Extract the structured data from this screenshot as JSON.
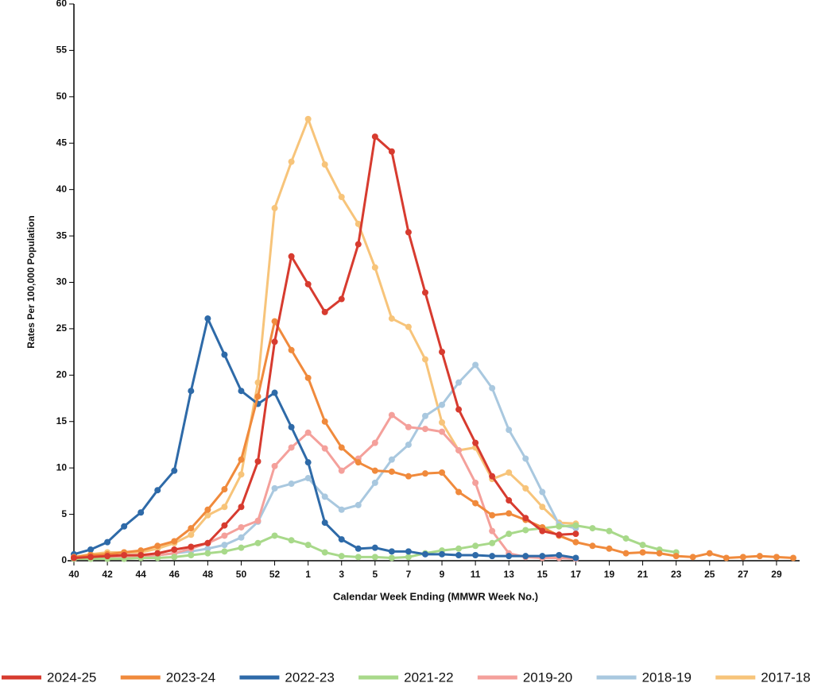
{
  "chart_data": {
    "type": "line",
    "xlabel": "Calendar Week Ending (MMWR Week No.)",
    "ylabel": "Rates Per 100,000 Population",
    "categories": [
      "40",
      null,
      "42",
      null,
      "44",
      null,
      "46",
      null,
      "48",
      null,
      "50",
      null,
      "52",
      null,
      "1",
      null,
      "3",
      null,
      "5",
      null,
      "7",
      null,
      "9",
      null,
      "11",
      null,
      "13",
      null,
      "15",
      null,
      "17",
      null,
      "19",
      null,
      "21",
      null,
      "23",
      null,
      "25",
      null,
      "27",
      null,
      "29",
      null
    ],
    "ylim": [
      0,
      60
    ],
    "yticks": [
      0,
      5,
      10,
      15,
      20,
      25,
      30,
      35,
      40,
      45,
      50,
      55,
      60
    ],
    "legend": "bottom",
    "series": [
      {
        "name": "2024-25",
        "color": "#d73b2f",
        "values": [
          0.3,
          0.4,
          0.5,
          0.6,
          0.6,
          0.8,
          1.2,
          1.5,
          1.9,
          3.8,
          5.8,
          10.7,
          23.6,
          32.8,
          29.8,
          26.8,
          28.2,
          34.1,
          45.7,
          44.1,
          35.4,
          28.9,
          22.5,
          16.3,
          12.7,
          9.1,
          6.5,
          4.6,
          3.2,
          2.8,
          2.9,
          null,
          null,
          null,
          null,
          null,
          null,
          null,
          null,
          null,
          null,
          null,
          null,
          null
        ]
      },
      {
        "name": "2023-24",
        "color": "#f08a3c",
        "values": [
          0.4,
          0.6,
          0.7,
          0.9,
          1.1,
          1.6,
          2.1,
          3.5,
          5.5,
          7.7,
          10.9,
          17.7,
          25.8,
          22.7,
          19.7,
          15.0,
          12.2,
          10.6,
          9.7,
          9.6,
          9.1,
          9.4,
          9.5,
          7.4,
          6.2,
          4.9,
          5.1,
          4.4,
          3.6,
          2.7,
          2.0,
          1.6,
          1.3,
          0.8,
          0.9,
          0.8,
          0.5,
          0.4,
          0.8,
          0.3,
          0.4,
          0.5,
          0.4,
          0.3
        ]
      },
      {
        "name": "2022-23",
        "color": "#2e6aa8",
        "values": [
          0.7,
          1.2,
          2.0,
          3.7,
          5.2,
          7.6,
          9.7,
          18.3,
          26.1,
          22.2,
          18.3,
          16.9,
          18.1,
          14.4,
          10.6,
          4.1,
          2.3,
          1.3,
          1.4,
          1.0,
          1.0,
          0.7,
          0.7,
          0.6,
          0.6,
          0.5,
          0.5,
          0.5,
          0.5,
          0.6,
          0.3,
          null,
          null,
          null,
          null,
          null,
          null,
          null,
          null,
          null,
          null,
          null,
          null,
          null
        ]
      },
      {
        "name": "2021-22",
        "color": "#a8d98a",
        "values": [
          0.2,
          0.2,
          0.2,
          0.2,
          0.3,
          0.3,
          0.4,
          0.6,
          0.8,
          1.0,
          1.4,
          1.9,
          2.7,
          2.2,
          1.7,
          0.9,
          0.5,
          0.4,
          0.4,
          0.3,
          0.4,
          0.8,
          1.1,
          1.3,
          1.6,
          1.9,
          2.9,
          3.3,
          3.5,
          3.7,
          3.8,
          3.5,
          3.2,
          2.4,
          1.7,
          1.2,
          0.9,
          null,
          null,
          null,
          null,
          null,
          null,
          null
        ]
      },
      {
        "name": "2019-20",
        "color": "#f4a09b",
        "values": [
          0.2,
          0.3,
          0.3,
          0.4,
          0.5,
          0.6,
          0.8,
          1.3,
          1.9,
          2.7,
          3.6,
          4.3,
          10.2,
          12.2,
          13.8,
          12.1,
          9.7,
          11.0,
          12.7,
          15.7,
          14.4,
          14.2,
          13.9,
          11.9,
          8.4,
          3.2,
          0.8,
          0.4,
          0.3,
          0.3,
          0.2,
          null,
          null,
          null,
          null,
          null,
          null,
          null,
          null,
          null,
          null,
          null,
          null,
          null
        ]
      },
      {
        "name": "2018-19",
        "color": "#a9c8df",
        "values": [
          0.2,
          0.3,
          0.3,
          0.4,
          0.5,
          0.6,
          0.8,
          1.0,
          1.3,
          1.7,
          2.5,
          4.2,
          7.8,
          8.3,
          8.9,
          6.9,
          5.5,
          6.0,
          8.4,
          10.9,
          12.5,
          15.6,
          16.8,
          19.2,
          21.1,
          18.6,
          14.1,
          11.0,
          7.4,
          3.9,
          3.5,
          null,
          null,
          null,
          null,
          null,
          null,
          null,
          null,
          null,
          null,
          null,
          null,
          null
        ]
      },
      {
        "name": "2017-18",
        "color": "#f7c47a",
        "values": [
          0.4,
          0.7,
          0.9,
          0.9,
          0.9,
          1.3,
          1.9,
          2.8,
          4.9,
          5.8,
          9.3,
          19.2,
          38.0,
          43.0,
          47.6,
          42.7,
          39.2,
          36.3,
          31.6,
          26.1,
          25.2,
          21.7,
          14.9,
          11.9,
          12.2,
          8.8,
          9.5,
          7.8,
          5.8,
          4.1,
          4.0,
          null,
          null,
          null,
          null,
          null,
          null,
          null,
          null,
          null,
          null,
          null,
          null,
          null
        ]
      }
    ]
  }
}
